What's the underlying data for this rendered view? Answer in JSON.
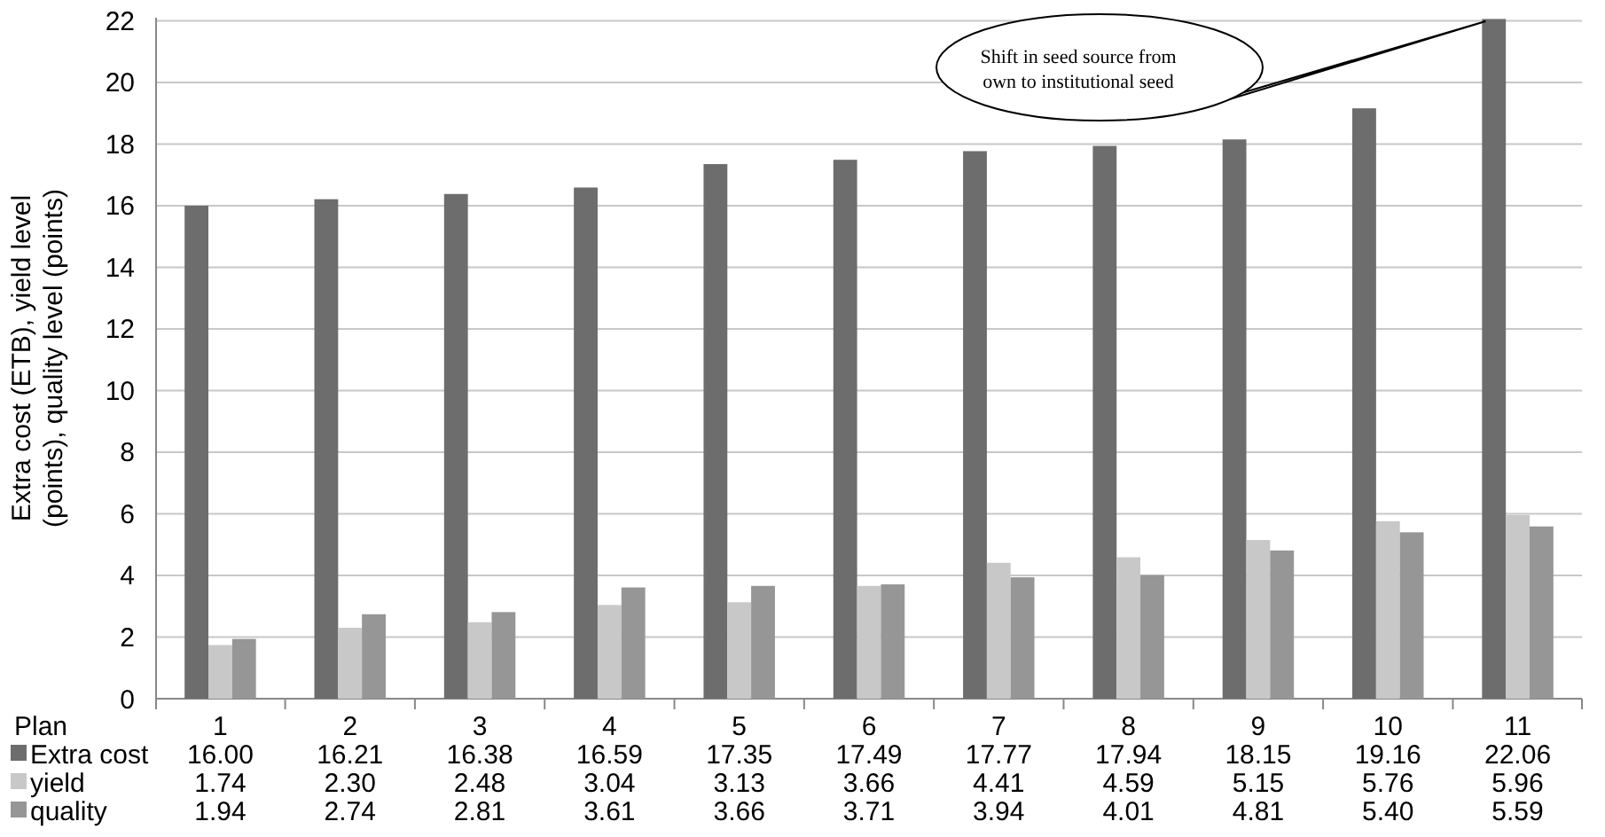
{
  "chart_data": {
    "type": "bar",
    "xlabel": "Plan",
    "ylabel": "Extra cost (ETB), yield level (points), quality level (points)",
    "categories": [
      "1",
      "2",
      "3",
      "4",
      "5",
      "6",
      "7",
      "8",
      "9",
      "10",
      "11"
    ],
    "series": [
      {
        "name": "Extra cost",
        "color": "#6d6d6d",
        "values": [
          16.0,
          16.21,
          16.38,
          16.59,
          17.35,
          17.49,
          17.77,
          17.94,
          18.15,
          19.16,
          22.06
        ],
        "value_labels": [
          "16.00",
          "16.21",
          "16.38",
          "16.59",
          "17.35",
          "17.49",
          "17.77",
          "17.94",
          "18.15",
          "19.16",
          "22.06"
        ]
      },
      {
        "name": "yield",
        "color": "#c8c8c8",
        "values": [
          1.74,
          2.3,
          2.48,
          3.04,
          3.13,
          3.66,
          4.41,
          4.59,
          5.15,
          5.76,
          5.96
        ],
        "value_labels": [
          "1.74",
          "2.30",
          "2.48",
          "3.04",
          "3.13",
          "3.66",
          "4.41",
          "4.59",
          "5.15",
          "5.76",
          "5.96"
        ]
      },
      {
        "name": "quality",
        "color": "#969696",
        "values": [
          1.94,
          2.74,
          2.81,
          3.61,
          3.66,
          3.71,
          3.94,
          4.01,
          4.81,
          5.4,
          5.59
        ],
        "value_labels": [
          "1.94",
          "2.74",
          "2.81",
          "3.61",
          "3.66",
          "3.71",
          "3.94",
          "4.01",
          "4.81",
          "5.40",
          "5.59"
        ]
      }
    ],
    "ylim": [
      0,
      22.1
    ],
    "yticks": [
      0,
      2,
      4,
      6,
      8,
      10,
      12,
      14,
      16,
      18,
      20,
      22
    ],
    "grid": "y",
    "legend": "bottom",
    "annotations": [
      "Shift in seed source from own to institutional seed"
    ]
  }
}
